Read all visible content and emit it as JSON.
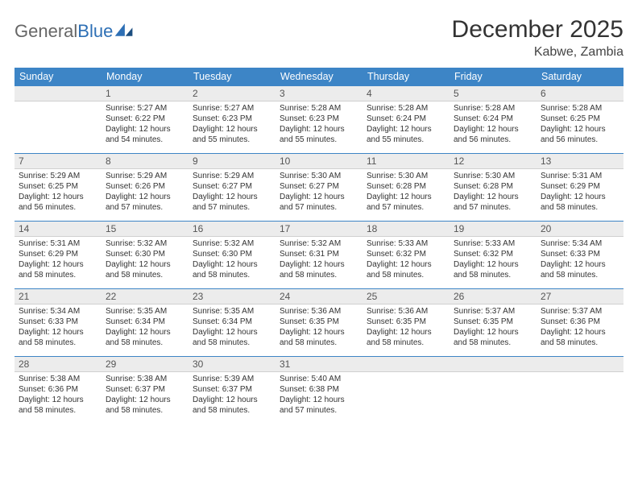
{
  "logo": {
    "textA": "General",
    "textB": "Blue"
  },
  "header": {
    "title": "December 2025",
    "location": "Kabwe, Zambia"
  },
  "colors": {
    "headerbar": "#3d85c6",
    "daynum_bg": "#ececec",
    "row_rule": "#3d85c6",
    "text": "#333333"
  },
  "weekdays": [
    "Sunday",
    "Monday",
    "Tuesday",
    "Wednesday",
    "Thursday",
    "Friday",
    "Saturday"
  ],
  "weeks": [
    [
      null,
      {
        "n": "1",
        "sr": "5:27 AM",
        "ss": "6:22 PM",
        "dl": "12 hours and 54 minutes."
      },
      {
        "n": "2",
        "sr": "5:27 AM",
        "ss": "6:23 PM",
        "dl": "12 hours and 55 minutes."
      },
      {
        "n": "3",
        "sr": "5:28 AM",
        "ss": "6:23 PM",
        "dl": "12 hours and 55 minutes."
      },
      {
        "n": "4",
        "sr": "5:28 AM",
        "ss": "6:24 PM",
        "dl": "12 hours and 55 minutes."
      },
      {
        "n": "5",
        "sr": "5:28 AM",
        "ss": "6:24 PM",
        "dl": "12 hours and 56 minutes."
      },
      {
        "n": "6",
        "sr": "5:28 AM",
        "ss": "6:25 PM",
        "dl": "12 hours and 56 minutes."
      }
    ],
    [
      {
        "n": "7",
        "sr": "5:29 AM",
        "ss": "6:25 PM",
        "dl": "12 hours and 56 minutes."
      },
      {
        "n": "8",
        "sr": "5:29 AM",
        "ss": "6:26 PM",
        "dl": "12 hours and 57 minutes."
      },
      {
        "n": "9",
        "sr": "5:29 AM",
        "ss": "6:27 PM",
        "dl": "12 hours and 57 minutes."
      },
      {
        "n": "10",
        "sr": "5:30 AM",
        "ss": "6:27 PM",
        "dl": "12 hours and 57 minutes."
      },
      {
        "n": "11",
        "sr": "5:30 AM",
        "ss": "6:28 PM",
        "dl": "12 hours and 57 minutes."
      },
      {
        "n": "12",
        "sr": "5:30 AM",
        "ss": "6:28 PM",
        "dl": "12 hours and 57 minutes."
      },
      {
        "n": "13",
        "sr": "5:31 AM",
        "ss": "6:29 PM",
        "dl": "12 hours and 58 minutes."
      }
    ],
    [
      {
        "n": "14",
        "sr": "5:31 AM",
        "ss": "6:29 PM",
        "dl": "12 hours and 58 minutes."
      },
      {
        "n": "15",
        "sr": "5:32 AM",
        "ss": "6:30 PM",
        "dl": "12 hours and 58 minutes."
      },
      {
        "n": "16",
        "sr": "5:32 AM",
        "ss": "6:30 PM",
        "dl": "12 hours and 58 minutes."
      },
      {
        "n": "17",
        "sr": "5:32 AM",
        "ss": "6:31 PM",
        "dl": "12 hours and 58 minutes."
      },
      {
        "n": "18",
        "sr": "5:33 AM",
        "ss": "6:32 PM",
        "dl": "12 hours and 58 minutes."
      },
      {
        "n": "19",
        "sr": "5:33 AM",
        "ss": "6:32 PM",
        "dl": "12 hours and 58 minutes."
      },
      {
        "n": "20",
        "sr": "5:34 AM",
        "ss": "6:33 PM",
        "dl": "12 hours and 58 minutes."
      }
    ],
    [
      {
        "n": "21",
        "sr": "5:34 AM",
        "ss": "6:33 PM",
        "dl": "12 hours and 58 minutes."
      },
      {
        "n": "22",
        "sr": "5:35 AM",
        "ss": "6:34 PM",
        "dl": "12 hours and 58 minutes."
      },
      {
        "n": "23",
        "sr": "5:35 AM",
        "ss": "6:34 PM",
        "dl": "12 hours and 58 minutes."
      },
      {
        "n": "24",
        "sr": "5:36 AM",
        "ss": "6:35 PM",
        "dl": "12 hours and 58 minutes."
      },
      {
        "n": "25",
        "sr": "5:36 AM",
        "ss": "6:35 PM",
        "dl": "12 hours and 58 minutes."
      },
      {
        "n": "26",
        "sr": "5:37 AM",
        "ss": "6:35 PM",
        "dl": "12 hours and 58 minutes."
      },
      {
        "n": "27",
        "sr": "5:37 AM",
        "ss": "6:36 PM",
        "dl": "12 hours and 58 minutes."
      }
    ],
    [
      {
        "n": "28",
        "sr": "5:38 AM",
        "ss": "6:36 PM",
        "dl": "12 hours and 58 minutes."
      },
      {
        "n": "29",
        "sr": "5:38 AM",
        "ss": "6:37 PM",
        "dl": "12 hours and 58 minutes."
      },
      {
        "n": "30",
        "sr": "5:39 AM",
        "ss": "6:37 PM",
        "dl": "12 hours and 58 minutes."
      },
      {
        "n": "31",
        "sr": "5:40 AM",
        "ss": "6:38 PM",
        "dl": "12 hours and 57 minutes."
      },
      null,
      null,
      null
    ]
  ],
  "labels": {
    "sunrise": "Sunrise:",
    "sunset": "Sunset:",
    "daylight": "Daylight:"
  }
}
